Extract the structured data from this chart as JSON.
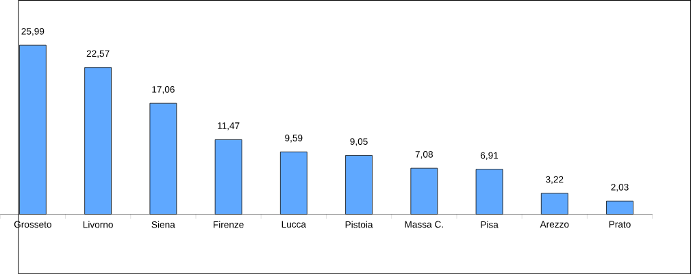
{
  "chart_data": {
    "type": "bar",
    "categories": [
      "Grosseto",
      "Livorno",
      "Siena",
      "Firenze",
      "Lucca",
      "Pistoia",
      "Massa C.",
      "Pisa",
      "Arezzo",
      "Prato"
    ],
    "values": [
      25.99,
      22.57,
      17.06,
      11.47,
      9.59,
      9.05,
      7.08,
      6.91,
      3.22,
      2.03
    ],
    "value_labels": [
      "25,99",
      "22,57",
      "17,06",
      "11,47",
      "9,59",
      "9,05",
      "7,08",
      "6,91",
      "3,22",
      "2,03"
    ],
    "color": "#5fa8ff"
  }
}
